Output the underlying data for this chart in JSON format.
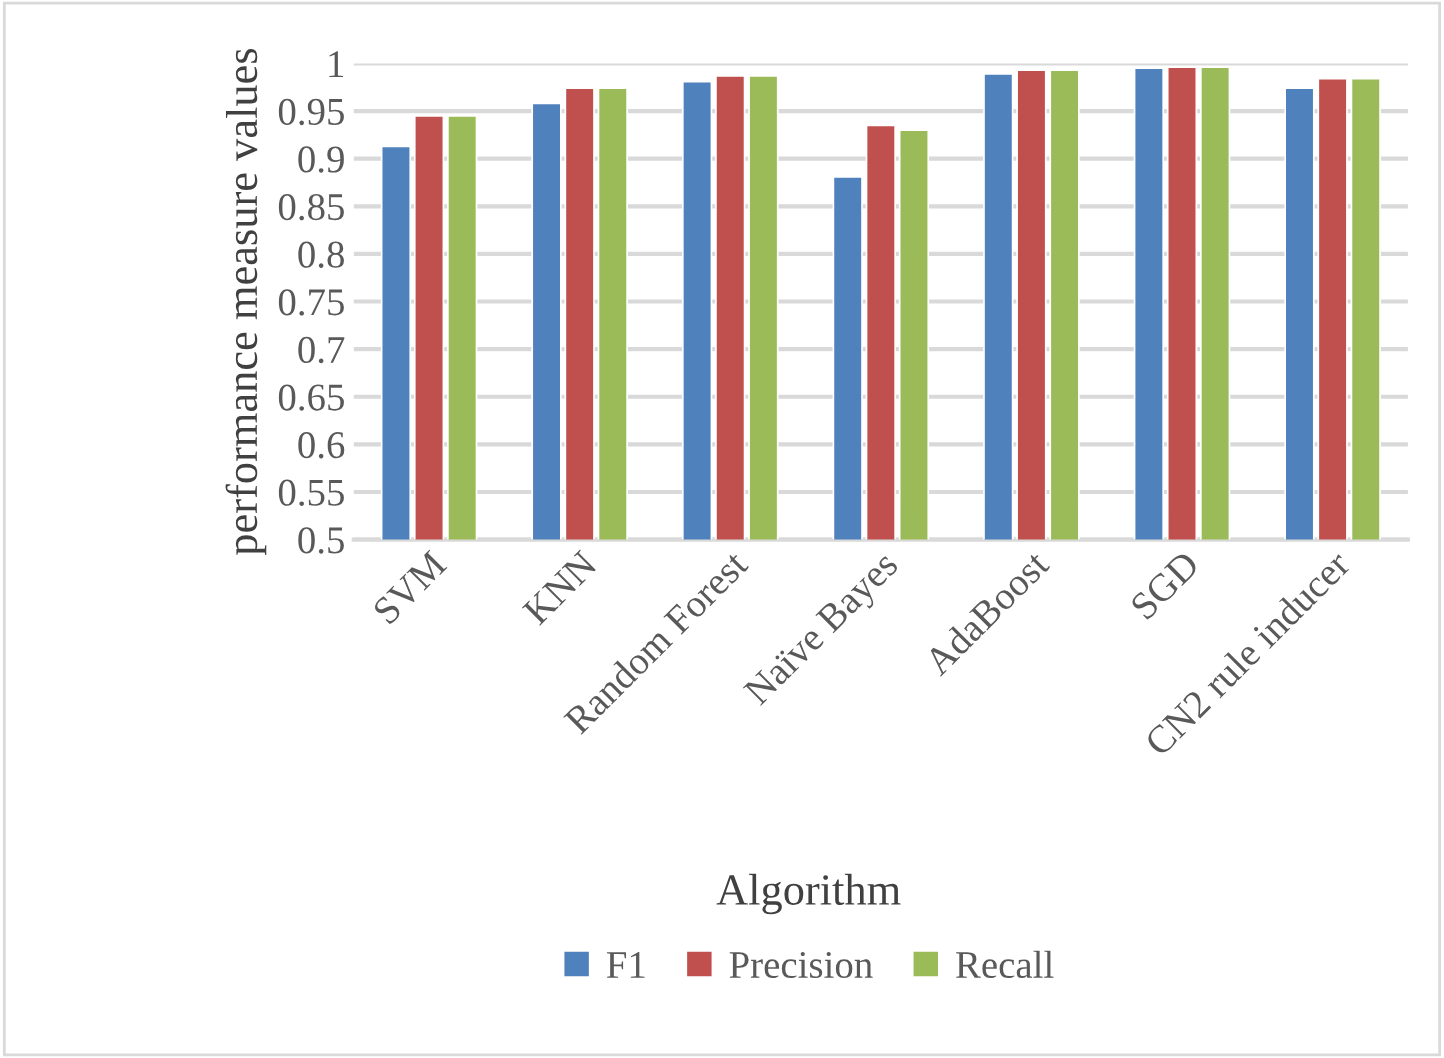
{
  "chart_data": {
    "type": "bar",
    "xlabel": "Algorithm",
    "ylabel": "performance measure values",
    "categories": [
      "SVM",
      "KNN",
      "Random Forest",
      "Naïve Bayes",
      "AdaBoost",
      "SGD",
      "CN2 rule inducer"
    ],
    "series": [
      {
        "name": "F1",
        "color": "#4f81bd",
        "values": [
          0.913,
          0.958,
          0.981,
          0.881,
          0.989,
          0.995,
          0.974
        ]
      },
      {
        "name": "Precision",
        "color": "#c0504d",
        "values": [
          0.945,
          0.974,
          0.987,
          0.935,
          0.993,
          0.996,
          0.984
        ]
      },
      {
        "name": "Recall",
        "color": "#9bbb59",
        "values": [
          0.945,
          0.974,
          0.987,
          0.93,
          0.993,
          0.996,
          0.984
        ]
      }
    ],
    "ylim": [
      0.5,
      1
    ],
    "yticks": [
      0.5,
      0.55,
      0.6,
      0.65,
      0.7,
      0.75,
      0.8,
      0.85,
      0.9,
      0.95,
      1
    ],
    "grid": "y",
    "legend": "bottom"
  }
}
